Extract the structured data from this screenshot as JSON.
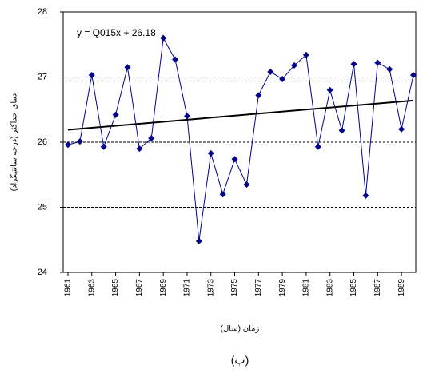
{
  "chart_data": {
    "type": "line",
    "y_label": "دمای حداکثر (درجه سانتیگراد)",
    "x_label": "زمان (سال)",
    "caption": "(ب)",
    "annotation": "y = Q015x + 26.18",
    "x": [
      1961,
      1962,
      1963,
      1964,
      1965,
      1966,
      1967,
      1968,
      1969,
      1970,
      1971,
      1972,
      1973,
      1974,
      1975,
      1976,
      1977,
      1978,
      1979,
      1980,
      1981,
      1982,
      1983,
      1984,
      1985,
      1986,
      1987,
      1988,
      1989,
      1990
    ],
    "series": [
      {
        "color": "#00008b",
        "values": [
          25.96,
          26.01,
          27.03,
          25.93,
          26.42,
          27.15,
          25.9,
          26.06,
          27.6,
          27.27,
          26.4,
          24.48,
          25.83,
          25.2,
          25.74,
          25.35,
          26.72,
          27.08,
          26.97,
          27.18,
          27.34,
          25.93,
          26.8,
          26.18,
          27.2,
          25.18,
          27.22,
          27.12,
          26.2,
          27.03
        ]
      }
    ],
    "trendline": {
      "color": "#000000",
      "x": [
        1961,
        1990
      ],
      "values": [
        26.19,
        26.64
      ]
    },
    "xlim": [
      1960.6,
      1990.2
    ],
    "xticks": [
      1961,
      1963,
      1965,
      1967,
      1969,
      1971,
      1973,
      1975,
      1977,
      1979,
      1981,
      1983,
      1985,
      1987,
      1989
    ],
    "ylim": [
      24,
      28
    ],
    "yticks": [
      24,
      25,
      26,
      27,
      28
    ],
    "grid": true
  }
}
